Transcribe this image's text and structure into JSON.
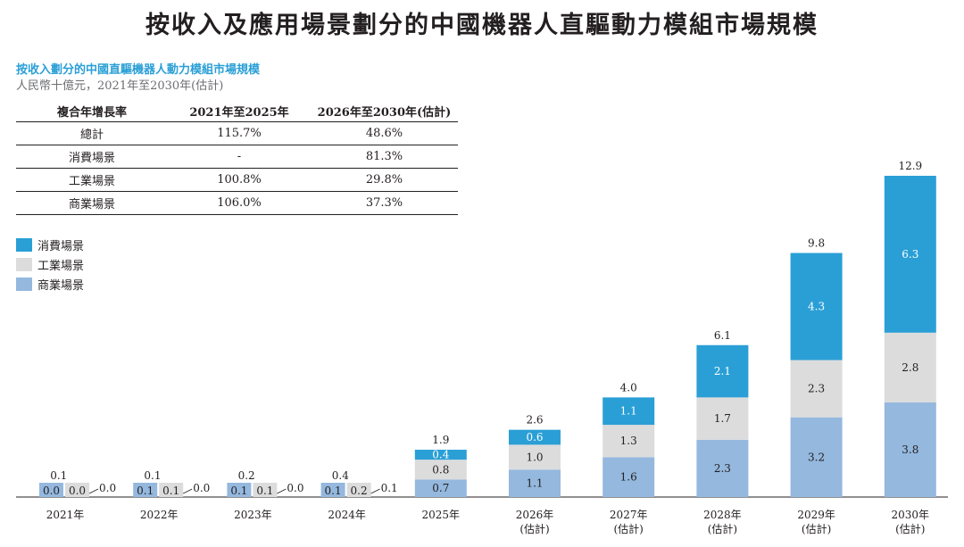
{
  "page": {
    "title": "按收入及應用場景劃分的中國機器人直驅動力模組市場規模"
  },
  "chart_data": {
    "type": "bar",
    "stacked": true,
    "title": "按收入劃分的中國直驅機器人動力模組市場規模",
    "unit_label": "人民幣十億元，2021年至2030年(估計)",
    "categories": [
      "2021年",
      "2022年",
      "2023年",
      "2024年",
      "2025年",
      "2026年\n(估計)",
      "2027年\n(估計)",
      "2028年\n(估計)",
      "2029年\n(估計)",
      "2030年\n(估計)"
    ],
    "series": [
      {
        "name": "商業場景",
        "color": "#94b8de",
        "values": [
          0.0,
          0.1,
          0.1,
          0.1,
          0.7,
          1.1,
          1.6,
          2.3,
          3.2,
          3.8
        ],
        "labels": [
          "0.0",
          "0.1",
          "0.1",
          "0.1",
          "0.7",
          "1.1",
          "1.6",
          "2.3",
          "3.2",
          "3.8"
        ]
      },
      {
        "name": "工業場景",
        "color": "#dcdcdd",
        "values": [
          0.0,
          0.1,
          0.1,
          0.2,
          0.8,
          1.0,
          1.3,
          1.7,
          2.3,
          2.8
        ],
        "labels": [
          "0.0",
          "0.1",
          "0.1",
          "0.2",
          "0.8",
          "1.0",
          "1.3",
          "1.7",
          "2.3",
          "2.8"
        ]
      },
      {
        "name": "消費場景",
        "color": "#2a9fd6",
        "values": [
          0.0,
          0.0,
          0.0,
          0.1,
          0.4,
          0.6,
          1.1,
          2.1,
          4.3,
          6.3
        ],
        "labels": [
          "0.0",
          "0.0",
          "0.0",
          "0.1",
          "0.4",
          "0.6",
          "1.1",
          "2.1",
          "4.3",
          "6.3"
        ]
      }
    ],
    "totals": [
      "0.1",
      "0.1",
      "0.2",
      "0.4",
      "1.9",
      "2.6",
      "4.0",
      "6.1",
      "9.8",
      "12.9"
    ],
    "ylim": [
      0,
      12.9
    ],
    "grid": false,
    "legend": "left"
  },
  "cagr_table": {
    "headers": [
      "複合年增長率",
      "2021年至2025年",
      "2026年至2030年(估計)"
    ],
    "rows": [
      [
        "總計",
        "115.7%",
        "48.6%"
      ],
      [
        "消費場景",
        "-",
        "81.3%"
      ],
      [
        "工業場景",
        "100.8%",
        "29.8%"
      ],
      [
        "商業場景",
        "106.0%",
        "37.3%"
      ]
    ]
  },
  "legend": {
    "items": [
      {
        "label": "消費場景",
        "color": "#2a9fd6"
      },
      {
        "label": "工業場景",
        "color": "#dcdcdd"
      },
      {
        "label": "商業場景",
        "color": "#94b8de"
      }
    ]
  }
}
